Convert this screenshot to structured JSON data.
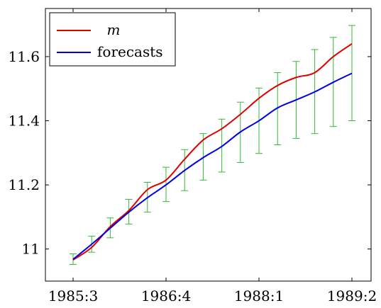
{
  "chart_data": {
    "type": "line",
    "x_ticks": [
      "1985:3",
      "1986:4",
      "1988:1",
      "1989:2"
    ],
    "x_tick_index": [
      0,
      5,
      10,
      15
    ],
    "ylim": [
      10.9,
      11.75
    ],
    "y_ticks": [
      11,
      11.2,
      11.4,
      11.6
    ],
    "y_tick_labels": [
      "11",
      "11.2",
      "11.4",
      "11.6"
    ],
    "grid": false,
    "legend_position": "top-left",
    "series": [
      {
        "name": "m",
        "color": "#e00000",
        "values": [
          10.966,
          11.005,
          11.07,
          11.12,
          11.185,
          11.215,
          11.28,
          11.34,
          11.375,
          11.42,
          11.47,
          11.51,
          11.535,
          11.55,
          11.6,
          11.64
        ]
      },
      {
        "name": "forecasts",
        "color": "#0000e0",
        "values": [
          10.968,
          11.015,
          11.065,
          11.115,
          11.16,
          11.2,
          11.245,
          11.285,
          11.32,
          11.365,
          11.4,
          11.44,
          11.465,
          11.49,
          11.52,
          11.548
        ]
      }
    ],
    "error_bars": {
      "color": "#33bb33",
      "lower": [
        10.952,
        10.99,
        11.035,
        11.078,
        11.115,
        11.148,
        11.182,
        11.215,
        11.24,
        11.27,
        11.298,
        11.325,
        11.345,
        11.36,
        11.382,
        11.4
      ],
      "upper": [
        10.985,
        11.04,
        11.097,
        11.155,
        11.208,
        11.255,
        11.31,
        11.36,
        11.405,
        11.458,
        11.502,
        11.55,
        11.585,
        11.622,
        11.66,
        11.697
      ]
    }
  }
}
